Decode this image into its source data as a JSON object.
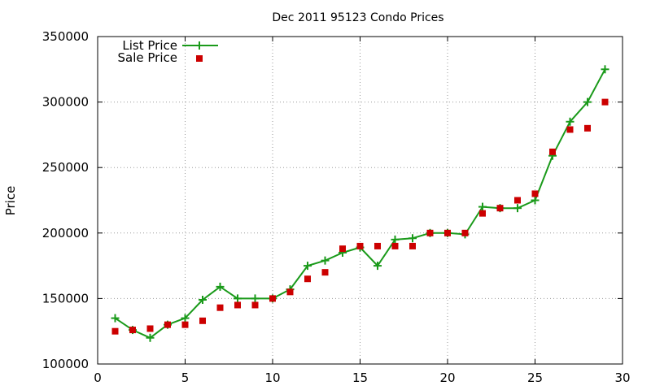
{
  "chart_data": {
    "type": "line",
    "title": "Dec 2011 95123 Condo Prices",
    "xlabel": "",
    "ylabel": "Price",
    "xlim": [
      0,
      30
    ],
    "ylim": [
      100000,
      350000
    ],
    "x_ticks": [
      "0",
      "5",
      "10",
      "15",
      "20",
      "25",
      "30"
    ],
    "y_ticks": [
      "100000",
      "150000",
      "200000",
      "250000",
      "300000",
      "350000"
    ],
    "grid": true,
    "legend_position": "top-left",
    "series": [
      {
        "name": "List Price",
        "style": "line+cross",
        "color": "#1a9a1a",
        "x": [
          1,
          2,
          3,
          4,
          5,
          6,
          7,
          8,
          9,
          10,
          11,
          12,
          13,
          14,
          15,
          16,
          17,
          18,
          19,
          20,
          21,
          22,
          23,
          24,
          25,
          26,
          27,
          28,
          29
        ],
        "y": [
          135000,
          126000,
          120000,
          130000,
          135000,
          149000,
          159000,
          150000,
          150000,
          150000,
          157000,
          175000,
          179000,
          185000,
          189000,
          175000,
          195000,
          196000,
          200000,
          200000,
          199000,
          220000,
          219000,
          219000,
          225000,
          259000,
          285000,
          300000,
          325000
        ]
      },
      {
        "name": "Sale Price",
        "style": "square",
        "color": "#cc0000",
        "x": [
          1,
          2,
          3,
          4,
          5,
          6,
          7,
          8,
          9,
          10,
          11,
          12,
          13,
          14,
          15,
          16,
          17,
          18,
          19,
          20,
          21,
          22,
          23,
          24,
          25,
          26,
          27,
          28,
          29
        ],
        "y": [
          125000,
          126000,
          127000,
          130000,
          130000,
          133000,
          143000,
          145000,
          145000,
          150000,
          155000,
          165000,
          170000,
          188000,
          190000,
          190000,
          190000,
          190000,
          200000,
          200000,
          200000,
          215000,
          219000,
          225000,
          230000,
          262000,
          279000,
          280000,
          300000
        ]
      }
    ]
  }
}
